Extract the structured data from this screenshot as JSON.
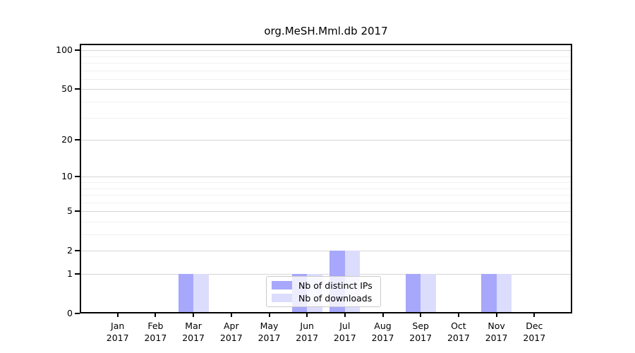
{
  "title": "org.MeSH.Mml.db 2017",
  "chart_data": {
    "type": "bar",
    "title": "org.MeSH.Mml.db 2017",
    "categories": [
      "Jan",
      "Feb",
      "Mar",
      "Apr",
      "May",
      "Jun",
      "Jul",
      "Aug",
      "Sep",
      "Oct",
      "Nov",
      "Dec"
    ],
    "tick_year": "2017",
    "series": [
      {
        "name": "Nb of distinct IPs",
        "color": "#a7a7fb",
        "values": [
          0,
          0,
          1,
          0,
          0,
          1,
          2,
          0,
          1,
          0,
          1,
          0
        ]
      },
      {
        "name": "Nb of downloads",
        "color": "#dcdcfc",
        "values": [
          0,
          0,
          1,
          0,
          0,
          1,
          2,
          0,
          1,
          0,
          1,
          0
        ]
      }
    ],
    "yscale": "log1p",
    "yticks": [
      0,
      1,
      2,
      5,
      10,
      20,
      50,
      100
    ],
    "grid_minor": [
      3,
      4,
      6,
      7,
      8,
      9,
      30,
      40,
      60,
      70,
      80,
      90
    ],
    "ylim": [
      0,
      112
    ],
    "xlabel": "",
    "ylabel": "",
    "grid": true,
    "legend_position": "lower center",
    "colors": {
      "axis": "#000000",
      "grid_major": "#d5d5d5",
      "grid_minor": "#f1f1f1"
    }
  },
  "legend": {
    "items": [
      {
        "label": "Nb of distinct IPs"
      },
      {
        "label": "Nb of downloads"
      }
    ]
  }
}
